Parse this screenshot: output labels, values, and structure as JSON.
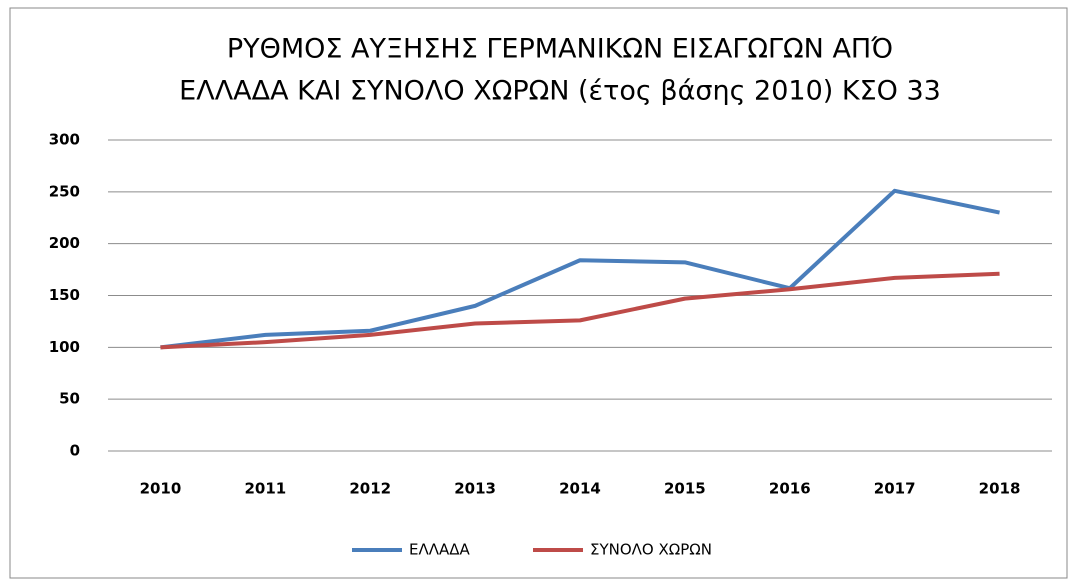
{
  "chart_data": {
    "type": "line",
    "title": [
      "ΡΥΘΜΟΣ ΑΥΞΗΣΗΣ ΓΕΡΜΑΝΙΚΩΝ ΕΙΣΑΓΩΓΩΝ ΑΠΌ",
      "ΕΛΛΑΔΑ ΚΑΙ ΣΥΝΟΛΟ ΧΩΡΩΝ (έτος βάσης 2010) ΚΣΟ 33"
    ],
    "categories": [
      "2010",
      "2011",
      "2012",
      "2013",
      "2014",
      "2015",
      "2016",
      "2017",
      "2018"
    ],
    "series": [
      {
        "name": "ΕΛΛΑΔΑ",
        "color": "#4a7ebb",
        "values": [
          100,
          112,
          116,
          140,
          184,
          182,
          157,
          251,
          230
        ]
      },
      {
        "name": "ΣΥΝΟΛΟ ΧΩΡΩΝ",
        "color": "#be4b48",
        "values": [
          100,
          105,
          112,
          123,
          126,
          147,
          156,
          167,
          171
        ]
      }
    ],
    "ylim": [
      0,
      300
    ],
    "yticks": [
      0,
      50,
      100,
      150,
      200,
      250,
      300
    ],
    "grid": true,
    "legend": "bottom"
  }
}
